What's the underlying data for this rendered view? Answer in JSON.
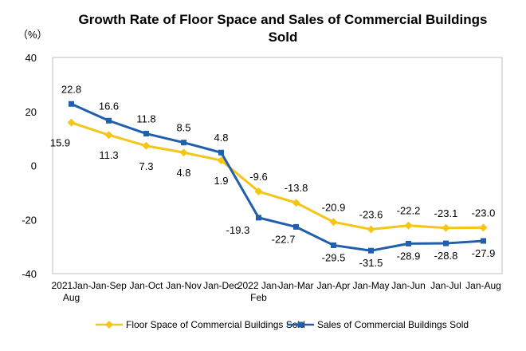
{
  "chart_data": {
    "type": "line",
    "title": "Growth Rate of Floor Space and Sales of Commercial Buildings Sold",
    "unit_label": "（%）",
    "categories": [
      [
        "2021Jan-",
        "Aug"
      ],
      [
        "Jan-Sep"
      ],
      [
        "Jan-Oct"
      ],
      [
        "Jan-Nov"
      ],
      [
        "Jan-Dec"
      ],
      [
        "2022 Jan-",
        "Feb"
      ],
      [
        "Jan-Mar"
      ],
      [
        "Jan-Apr"
      ],
      [
        "Jan-May"
      ],
      [
        "Jan-Jun"
      ],
      [
        "Jan-Jul"
      ],
      [
        "Jan-Aug"
      ]
    ],
    "ylim": [
      -40,
      40
    ],
    "yticks": [
      "40",
      "20",
      "0",
      "-20",
      "-40"
    ],
    "grid": false,
    "legend_position": "bottom",
    "series": [
      {
        "name": "Floor Space of Commercial Buildings Sold",
        "color": "#f5c518",
        "marker": "diamond",
        "values": [
          15.9,
          11.3,
          7.3,
          4.8,
          1.9,
          -9.6,
          -13.8,
          -20.9,
          -23.6,
          -22.2,
          -23.1,
          -23.0
        ],
        "labels": [
          "15.9",
          "11.3",
          "7.3",
          "4.8",
          "1.9",
          "-9.6",
          "-13.8",
          "-20.9",
          "-23.6",
          "-22.2",
          "-23.1",
          "-23.0"
        ]
      },
      {
        "name": "Sales of Commercial Buildings Sold",
        "color": "#1f5fad",
        "marker": "square",
        "values": [
          22.8,
          16.6,
          11.8,
          8.5,
          4.8,
          -19.3,
          -22.7,
          -29.5,
          -31.5,
          -28.9,
          -28.8,
          -27.9
        ],
        "labels": [
          "22.8",
          "16.6",
          "11.8",
          "8.5",
          "4.8",
          "-19.3",
          "-22.7",
          "-29.5",
          "-31.5",
          "-28.9",
          "-28.8",
          "-27.9"
        ]
      }
    ]
  }
}
